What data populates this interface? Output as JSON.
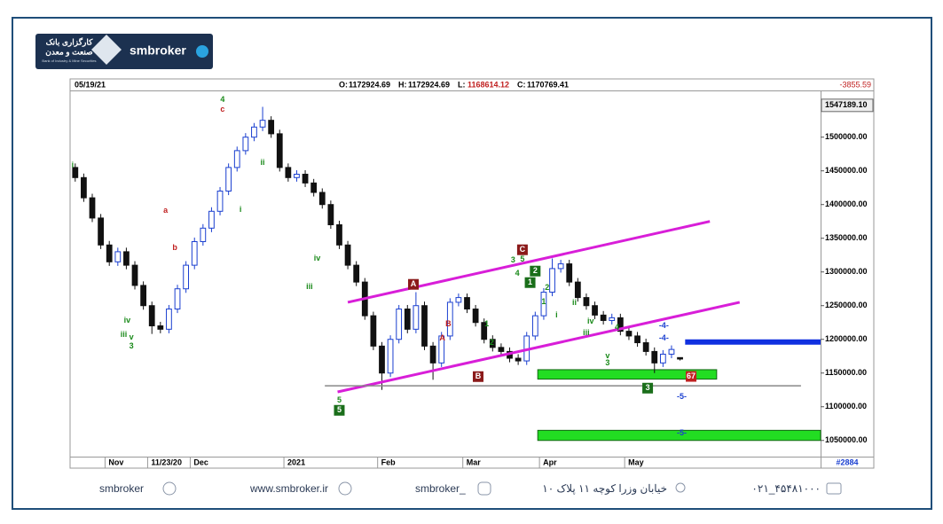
{
  "chart_data": {
    "type": "candlestick",
    "date": "05/19/21",
    "ohlc_labels": [
      "O:",
      "H:",
      "L:",
      "C:"
    ],
    "change": -3855.59,
    "bar_count": "#2884",
    "price_marker": {
      "value": 1547189.1,
      "label": "1547189.10"
    },
    "up_color": "#1a3fd0",
    "down_color": "#111111",
    "categories": [
      "",
      "",
      "",
      "",
      "Nov",
      "",
      "",
      "",
      "",
      "11/23/20",
      "",
      "",
      "",
      "",
      "Dec",
      "",
      "",
      "",
      "",
      "",
      "",
      "",
      "",
      "",
      "",
      "2021",
      "",
      "",
      "",
      "",
      "",
      "",
      "",
      "",
      "",
      "",
      "Feb",
      "",
      "",
      "",
      "",
      "",
      "",
      "",
      "",
      "",
      "Mar",
      "",
      "",
      "",
      "",
      "",
      "",
      "",
      "",
      "Apr",
      "",
      "",
      "",
      "",
      "",
      "",
      "",
      "",
      "",
      "May",
      "",
      "",
      "",
      "",
      "",
      ""
    ],
    "open": [
      1455000,
      1440000,
      1410000,
      1380000,
      1340000,
      1315000,
      1330000,
      1310000,
      1280000,
      1250000,
      1220000,
      1215000,
      1245000,
      1275000,
      1310000,
      1345000,
      1365000,
      1390000,
      1420000,
      1455000,
      1480000,
      1500000,
      1515000,
      1525000,
      1505000,
      1455000,
      1440000,
      1445000,
      1432000,
      1418000,
      1400000,
      1370000,
      1340000,
      1310000,
      1285000,
      1235000,
      1190000,
      1150000,
      1200000,
      1245000,
      1215000,
      1250000,
      1190000,
      1165000,
      1205000,
      1255000,
      1262000,
      1245000,
      1225000,
      1200000,
      1188000,
      1182000,
      1172000,
      1168000,
      1205000,
      1235000,
      1270000,
      1305000,
      1312000,
      1285000,
      1262000,
      1250000,
      1236000,
      1228000,
      1232000,
      1212000,
      1205000,
      1195000,
      1182000,
      1165000,
      1178000,
      1172924.69
    ],
    "high": [
      1461000,
      1446000,
      1416000,
      1386000,
      1346000,
      1336000,
      1336000,
      1316000,
      1286000,
      1256000,
      1226000,
      1251000,
      1281000,
      1316000,
      1351000,
      1371000,
      1396000,
      1426000,
      1461000,
      1486000,
      1506000,
      1521000,
      1545000,
      1531000,
      1511000,
      1461000,
      1451000,
      1451000,
      1438000,
      1424000,
      1406000,
      1376000,
      1346000,
      1316000,
      1291000,
      1241000,
      1196000,
      1206000,
      1251000,
      1251000,
      1270000,
      1256000,
      1196000,
      1211000,
      1261000,
      1268000,
      1268000,
      1251000,
      1231000,
      1206000,
      1194000,
      1188000,
      1178000,
      1211000,
      1241000,
      1276000,
      1320000,
      1318000,
      1318000,
      1291000,
      1268000,
      1256000,
      1242000,
      1238000,
      1238000,
      1218000,
      1211000,
      1201000,
      1188000,
      1184000,
      1191000,
      1172924.69
    ],
    "low": [
      1434000,
      1404000,
      1374000,
      1334000,
      1309000,
      1309000,
      1304000,
      1274000,
      1244000,
      1208000,
      1209000,
      1209000,
      1239000,
      1269000,
      1304000,
      1339000,
      1359000,
      1384000,
      1414000,
      1449000,
      1474000,
      1494000,
      1509000,
      1499000,
      1449000,
      1434000,
      1434000,
      1426000,
      1412000,
      1394000,
      1364000,
      1334000,
      1304000,
      1279000,
      1229000,
      1184000,
      1125000,
      1144000,
      1194000,
      1209000,
      1209000,
      1184000,
      1140000,
      1159000,
      1199000,
      1249000,
      1239000,
      1219000,
      1194000,
      1182000,
      1176000,
      1166000,
      1162000,
      1162000,
      1199000,
      1229000,
      1264000,
      1299000,
      1279000,
      1256000,
      1244000,
      1230000,
      1222000,
      1222000,
      1206000,
      1199000,
      1189000,
      1176000,
      1150000,
      1159000,
      1172000,
      1168614.12
    ],
    "close": [
      1440000,
      1410000,
      1380000,
      1340000,
      1315000,
      1330000,
      1310000,
      1280000,
      1250000,
      1220000,
      1215000,
      1245000,
      1275000,
      1310000,
      1345000,
      1365000,
      1390000,
      1420000,
      1455000,
      1480000,
      1500000,
      1515000,
      1525000,
      1505000,
      1455000,
      1440000,
      1445000,
      1432000,
      1418000,
      1400000,
      1370000,
      1340000,
      1310000,
      1285000,
      1235000,
      1190000,
      1150000,
      1200000,
      1245000,
      1215000,
      1250000,
      1190000,
      1165000,
      1205000,
      1255000,
      1262000,
      1245000,
      1225000,
      1200000,
      1188000,
      1182000,
      1172000,
      1168000,
      1205000,
      1235000,
      1270000,
      1305000,
      1312000,
      1285000,
      1262000,
      1250000,
      1236000,
      1228000,
      1232000,
      1212000,
      1205000,
      1195000,
      1182000,
      1165000,
      1178000,
      1185000,
      1170769.41
    ],
    "xlim": [
      -0.5,
      87.5
    ],
    "ylim": [
      1026000,
      1568000
    ],
    "yticks": [
      {
        "value": 1050000,
        "label": "1050000.00"
      },
      {
        "value": 1100000,
        "label": "1100000.00"
      },
      {
        "value": 1150000,
        "label": "1150000.00"
      },
      {
        "value": 1200000,
        "label": "1200000.00"
      },
      {
        "value": 1250000,
        "label": "1250000.00"
      },
      {
        "value": 1300000,
        "label": "1300000.00"
      },
      {
        "value": 1350000,
        "label": "1350000.00"
      },
      {
        "value": 1400000,
        "label": "1400000.00"
      },
      {
        "value": 1450000,
        "label": "1450000.00"
      },
      {
        "value": 1500000,
        "label": "1500000.00"
      }
    ],
    "annotations": {
      "lines": [
        {
          "color": "#d81ed8",
          "width": 3,
          "points": [
            [
              32,
              1255000
            ],
            [
              74.5,
              1375000
            ]
          ]
        },
        {
          "color": "#d81ed8",
          "width": 3,
          "points": [
            [
              30.8,
              1122000
            ],
            [
              78,
              1255000
            ]
          ]
        },
        {
          "color": "#888888",
          "width": 1.5,
          "points": [
            [
              29.3,
              1131000
            ],
            [
              85.2,
              1131000
            ]
          ]
        },
        {
          "color": "#1030e0",
          "width": 6,
          "points": [
            [
              71.6,
              1196000
            ],
            [
              87.5,
              1196000
            ]
          ]
        }
      ],
      "bands": [
        {
          "color": "#22dd22",
          "x": [
            54.3,
            75.3
          ],
          "y": [
            1141000,
            1155000
          ]
        },
        {
          "color": "#22dd22",
          "x": [
            54.3,
            87.5
          ],
          "y": [
            1050000,
            1065000
          ]
        }
      ],
      "labels": [
        {
          "text": "i",
          "x": -0.3,
          "y": 1457900,
          "color": "#1a8a1a",
          "box": false
        },
        {
          "text": "a",
          "x": 10.6,
          "y": 1390800,
          "color": "#c02020",
          "box": false
        },
        {
          "text": "b",
          "x": 11.7,
          "y": 1335500,
          "color": "#c02020",
          "box": false
        },
        {
          "text": "iv",
          "x": 6.1,
          "y": 1227600,
          "color": "#1a8a1a",
          "box": false
        },
        {
          "text": "iii",
          "x": 5.7,
          "y": 1206600,
          "color": "#1a8a1a",
          "box": false
        },
        {
          "text": "v",
          "x": 6.6,
          "y": 1202600,
          "color": "#1a8a1a",
          "box": false
        },
        {
          "text": "3",
          "x": 6.6,
          "y": 1189500,
          "color": "#1a8a1a",
          "box": false
        },
        {
          "text": "4",
          "x": 17.3,
          "y": 1555300,
          "color": "#1a8a1a",
          "box": false
        },
        {
          "text": "c",
          "x": 17.3,
          "y": 1540800,
          "color": "#c02020",
          "box": false
        },
        {
          "text": "ii",
          "x": 22.0,
          "y": 1461800,
          "color": "#1a8a1a",
          "box": false
        },
        {
          "text": "i",
          "x": 19.4,
          "y": 1392100,
          "color": "#1a8a1a",
          "box": false
        },
        {
          "text": "iv",
          "x": 28.4,
          "y": 1319700,
          "color": "#1a8a1a",
          "box": false
        },
        {
          "text": "iii",
          "x": 27.5,
          "y": 1277600,
          "color": "#1a8a1a",
          "box": false
        },
        {
          "text": "5",
          "x": 31,
          "y": 1109200,
          "color": "#1a8a1a",
          "box": false
        },
        {
          "text": "5",
          "x": 31,
          "y": 1094700,
          "color": "#1a6e1a",
          "box": true
        },
        {
          "text": "A",
          "x": 39.7,
          "y": 1281600,
          "color": "#8b1a1a",
          "box": true
        },
        {
          "text": "B",
          "x": 43.8,
          "y": 1222400,
          "color": "#c02020",
          "box": false
        },
        {
          "text": "A",
          "x": 43.1,
          "y": 1201300,
          "color": "#c02020",
          "box": false
        },
        {
          "text": "B",
          "x": 47.3,
          "y": 1144700,
          "color": "#8b1a1a",
          "box": true
        },
        {
          "text": "1",
          "x": 48.3,
          "y": 1222400,
          "color": "#1a8a1a",
          "box": false
        },
        {
          "text": "2",
          "x": 48.9,
          "y": 1194700,
          "color": "#1a8a1a",
          "box": false
        },
        {
          "text": "3",
          "x": 51.4,
          "y": 1317100,
          "color": "#1a8a1a",
          "box": false
        },
        {
          "text": "5",
          "x": 52.5,
          "y": 1318400,
          "color": "#1a8a1a",
          "box": false
        },
        {
          "text": "4",
          "x": 51.9,
          "y": 1297400,
          "color": "#1a8a1a",
          "box": false
        },
        {
          "text": "C",
          "x": 52.5,
          "y": 1332900,
          "color": "#8b1a1a",
          "box": true
        },
        {
          "text": "2",
          "x": 54,
          "y": 1301300,
          "color": "#1a6e1a",
          "box": true
        },
        {
          "text": "1",
          "x": 53.4,
          "y": 1284200,
          "color": "#1a6e1a",
          "box": true
        },
        {
          "text": "2",
          "x": 55.4,
          "y": 1276300,
          "color": "#1a8a1a",
          "box": false
        },
        {
          "text": "1",
          "x": 55,
          "y": 1255300,
          "color": "#1a8a1a",
          "box": false
        },
        {
          "text": "ii",
          "x": 58.6,
          "y": 1254000,
          "color": "#1a8a1a",
          "box": false
        },
        {
          "text": "i",
          "x": 56.5,
          "y": 1235500,
          "color": "#1a8a1a",
          "box": false
        },
        {
          "text": "iv",
          "x": 60.5,
          "y": 1226300,
          "color": "#1a8a1a",
          "box": false
        },
        {
          "text": "iii",
          "x": 60,
          "y": 1209200,
          "color": "#1a8a1a",
          "box": false
        },
        {
          "text": "4",
          "x": 63.6,
          "y": 1217100,
          "color": "#1a8a1a",
          "box": false
        },
        {
          "text": "v",
          "x": 62.5,
          "y": 1175000,
          "color": "#1a8a1a",
          "box": false
        },
        {
          "text": "3",
          "x": 62.5,
          "y": 1164500,
          "color": "#1a8a1a",
          "box": false
        },
        {
          "text": "3",
          "x": 67.2,
          "y": 1127600,
          "color": "#1a6e1a",
          "box": true
        },
        {
          "text": "-4-",
          "x": 69.1,
          "y": 1219700,
          "color": "#1a3fd0",
          "box": false
        },
        {
          "text": "-4-",
          "x": 69.1,
          "y": 1201300,
          "color": "#1a3fd0",
          "box": false
        },
        {
          "text": "-5-",
          "x": 71.2,
          "y": 1114500,
          "color": "#1a3fd0",
          "box": false
        },
        {
          "text": "-5-",
          "x": 71.2,
          "y": 1060500,
          "color": "#1a3fd0",
          "box": false
        },
        {
          "text": "67",
          "x": 72.3,
          "y": 1145000,
          "color": "#c02020",
          "box": true
        }
      ]
    }
  },
  "header": {
    "brand": "smbroker",
    "logo_line1": "کارگزاری بانک",
    "logo_line2": "صنعت و معدن",
    "logo_line3": "Bank of Industry & Mine Securities"
  },
  "footer": {
    "telegram": "smbroker",
    "website": "www.smbroker.ir",
    "instagram": "smbroker_",
    "address": "خیابان وزرا کوچه ۱۱ پلاک ۱۰",
    "phone": "۰۲۱_۴۵۴۸۱۰۰۰"
  }
}
